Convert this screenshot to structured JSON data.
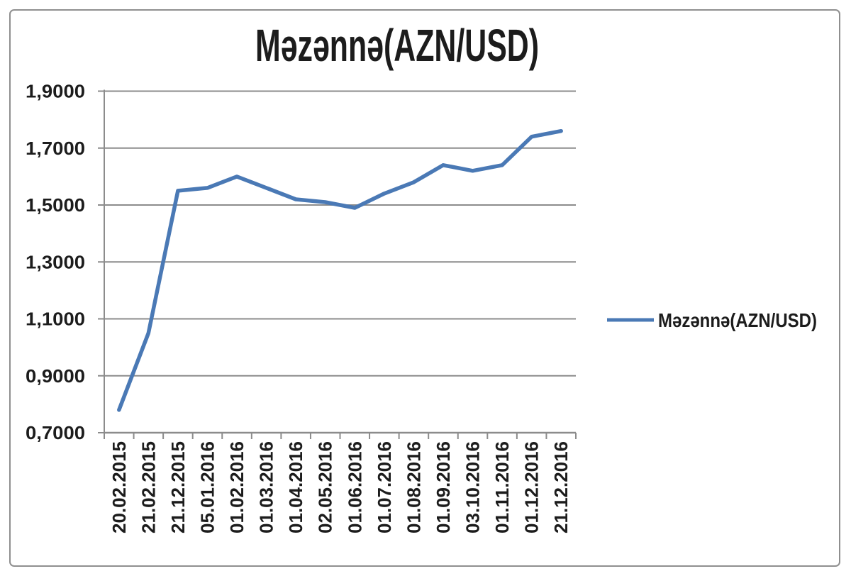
{
  "chart_data": {
    "type": "line",
    "title": "Məzənnə(AZN/USD)",
    "categories": [
      "20.02.2015",
      "21.02.2015",
      "21.12.2015",
      "05.01.2016",
      "01.02.2016",
      "01.03.2016",
      "01.04.2016",
      "02.05.2016",
      "01.06.2016",
      "01.07.2016",
      "01.08.2016",
      "01.09.2016",
      "03.10.2016",
      "01.11.2016",
      "01.12.2016",
      "21.12.2016"
    ],
    "series": [
      {
        "name": "Məzənnə(AZN/USD)",
        "color": "#4A79B5",
        "values": [
          0.78,
          1.05,
          1.55,
          1.56,
          1.6,
          1.56,
          1.52,
          1.51,
          1.49,
          1.54,
          1.58,
          1.64,
          1.62,
          1.64,
          1.74,
          1.76
        ]
      }
    ],
    "xlabel": "",
    "ylabel": "",
    "ylim": [
      0.7,
      1.9
    ],
    "ytick_step": 0.2,
    "ytick_labels": [
      "0,7000",
      "0,9000",
      "1,1000",
      "1,3000",
      "1,5000",
      "1,7000",
      "1,9000"
    ],
    "grid": true,
    "legend_position": "right",
    "x_tick_label_rotation_deg": -90,
    "colors": {
      "axis": "#8C8C8C",
      "text": "#1C1C1C",
      "frame_border": "#8F8F8F",
      "background": "#FFFFFF"
    }
  }
}
